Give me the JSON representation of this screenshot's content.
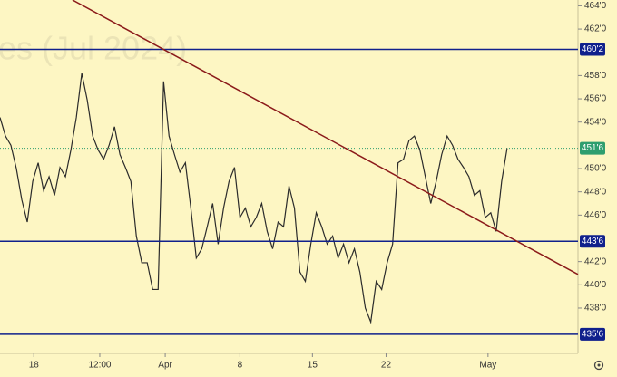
{
  "chart_data": {
    "type": "line",
    "watermark": "es (Jul 2024)",
    "color": "#2b2b2b",
    "x": [
      0,
      1,
      2,
      3,
      4,
      5,
      6,
      7,
      8,
      9,
      10,
      11,
      12,
      13,
      14,
      15,
      16,
      17,
      18,
      19,
      20,
      21,
      22,
      23,
      24,
      25,
      26,
      27,
      28,
      29,
      30,
      31,
      32,
      33,
      34,
      35,
      36,
      37,
      38,
      39,
      40,
      41,
      42,
      43,
      44,
      45,
      46,
      47,
      48,
      49,
      50,
      51,
      52,
      53,
      54,
      55,
      56,
      57,
      58,
      59,
      60,
      61,
      62,
      63,
      64,
      65,
      66,
      67,
      68,
      69,
      70,
      71,
      72,
      73,
      74,
      75,
      76,
      77,
      78,
      79,
      80,
      81,
      82,
      83,
      84,
      85,
      86,
      87,
      88,
      89,
      90,
      91,
      92,
      93
    ],
    "values": [
      454.4,
      452.8,
      452,
      450,
      447.3,
      445.4,
      448.9,
      450.5,
      448.1,
      449.3,
      447.7,
      450.1,
      449.3,
      451.6,
      454.4,
      458.2,
      455.9,
      452.8,
      451.6,
      450.8,
      452,
      453.6,
      451.2,
      450.1,
      448.9,
      444.2,
      441.9,
      441.9,
      439.6,
      439.6,
      457.5,
      452.8,
      451.2,
      449.7,
      450.5,
      446.6,
      442.3,
      443.1,
      445,
      447,
      443.5,
      446.6,
      448.9,
      450.1,
      445.8,
      446.6,
      445,
      445.8,
      447,
      444.6,
      443.1,
      445.4,
      445,
      448.5,
      446.6,
      441.1,
      440.3,
      443.5,
      446.2,
      445,
      443.5,
      444.2,
      442.3,
      443.5,
      441.9,
      443.1,
      441.1,
      438,
      436.8,
      440.3,
      439.6,
      441.9,
      443.5,
      450.5,
      450.8,
      452.4,
      452.8,
      451.6,
      449.3,
      447,
      448.9,
      451.2,
      452.8,
      452,
      450.8,
      450.1,
      449.3,
      447.7,
      448.1,
      445.8,
      446.2,
      444.6,
      448.9,
      451.75
    ],
    "xlim": [
      0,
      106
    ],
    "ylim": [
      434.1,
      464.5
    ],
    "yticks": [
      {
        "value": 464,
        "label": "464'0"
      },
      {
        "value": 462,
        "label": "462'0"
      },
      {
        "value": 458,
        "label": "458'0"
      },
      {
        "value": 456,
        "label": "456'0"
      },
      {
        "value": 454,
        "label": "454'0"
      },
      {
        "value": 450,
        "label": "450'0"
      },
      {
        "value": 448,
        "label": "448'0"
      },
      {
        "value": 446,
        "label": "446'0"
      },
      {
        "value": 442,
        "label": "442'0"
      },
      {
        "value": 440,
        "label": "440'0"
      },
      {
        "value": 438,
        "label": "438'0"
      }
    ],
    "xticks": [
      {
        "value": 6.2,
        "label": "18"
      },
      {
        "value": 18.3,
        "label": "12:00"
      },
      {
        "value": 30.3,
        "label": "Apr"
      },
      {
        "value": 44,
        "label": "8"
      },
      {
        "value": 57.3,
        "label": "15"
      },
      {
        "value": 70.8,
        "label": "22"
      },
      {
        "value": 89.5,
        "label": "May"
      }
    ],
    "grid": false,
    "levels": [
      {
        "value": 460.25,
        "label": "460'2",
        "color": "#10208c"
      },
      {
        "value": 443.75,
        "label": "443'6",
        "color": "#10208c"
      },
      {
        "value": 435.75,
        "label": "435'6",
        "color": "#10208c"
      }
    ],
    "last_price": {
      "value": 451.75,
      "label": "451'6",
      "color": "#2e9e6e"
    },
    "trendline": {
      "x": [
        13.3,
        106
      ],
      "values": [
        464.5,
        440.9
      ],
      "color": "#8b1a1a"
    }
  }
}
